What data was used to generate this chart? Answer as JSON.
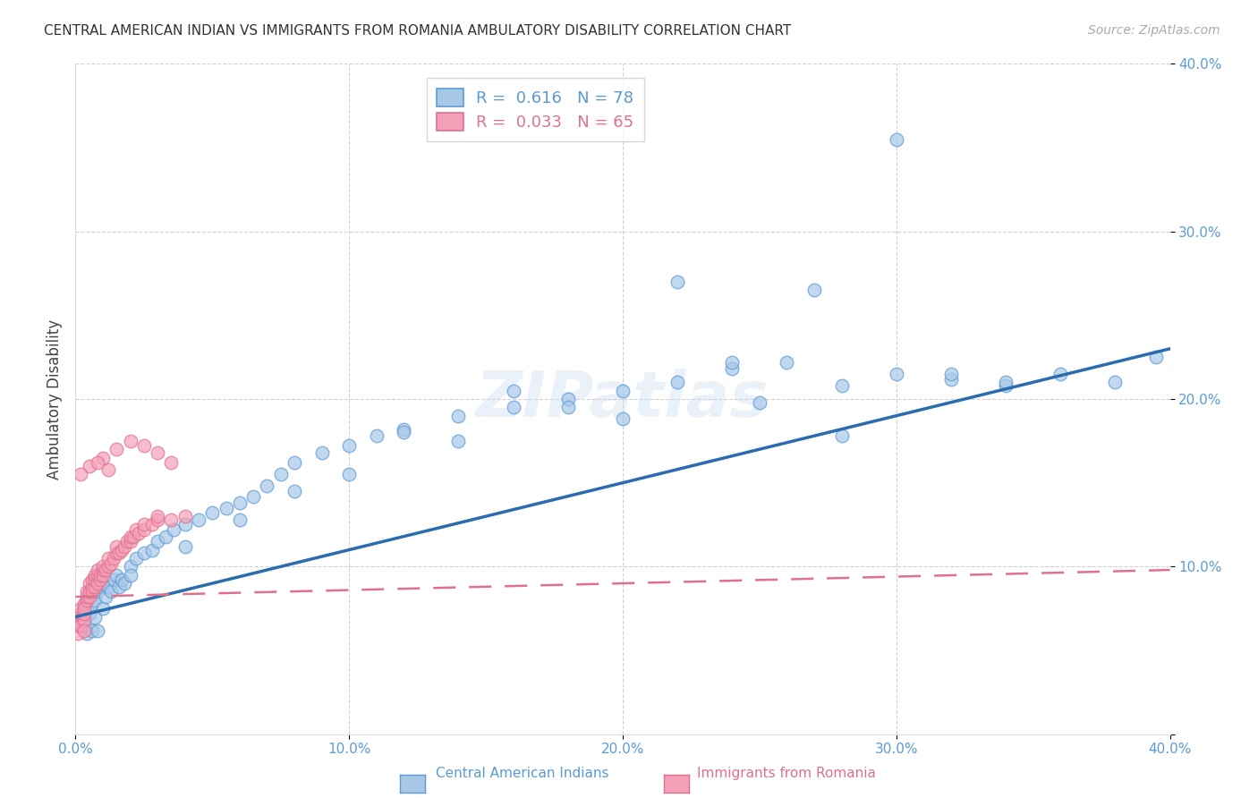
{
  "title": "CENTRAL AMERICAN INDIAN VS IMMIGRANTS FROM ROMANIA AMBULATORY DISABILITY CORRELATION CHART",
  "source": "Source: ZipAtlas.com",
  "ylabel": "Ambulatory Disability",
  "xlim": [
    0.0,
    0.4
  ],
  "ylim": [
    0.0,
    0.4
  ],
  "xticks": [
    0.0,
    0.1,
    0.2,
    0.3,
    0.4
  ],
  "yticks": [
    0.0,
    0.1,
    0.2,
    0.3,
    0.4
  ],
  "xticklabels": [
    "0.0%",
    "10.0%",
    "20.0%",
    "30.0%",
    "40.0%"
  ],
  "yticklabels": [
    "",
    "10.0%",
    "20.0%",
    "30.0%",
    "40.0%"
  ],
  "watermark": "ZIPatlas",
  "R_blue": 0.616,
  "N_blue": 78,
  "R_pink": 0.033,
  "N_pink": 65,
  "blue_face": "#a8c8e8",
  "blue_edge": "#5b9bd5",
  "pink_face": "#f4a0b8",
  "pink_edge": "#e07090",
  "line_blue": "#2b6cb0",
  "line_pink": "#e07090",
  "tick_color": "#5b9bd5",
  "legend_text_blue": "#5b9bd5",
  "legend_text_pink": "#e07090",
  "background_color": "#ffffff",
  "grid_color": "#cccccc",
  "title_fontsize": 11,
  "source_fontsize": 10,
  "watermark_fontsize": 52,
  "watermark_color": "#c8d8f0",
  "watermark_alpha": 0.35,
  "blue_x": [
    0.001,
    0.002,
    0.002,
    0.003,
    0.003,
    0.004,
    0.004,
    0.005,
    0.005,
    0.006,
    0.006,
    0.007,
    0.007,
    0.008,
    0.008,
    0.009,
    0.01,
    0.01,
    0.011,
    0.012,
    0.013,
    0.014,
    0.015,
    0.016,
    0.017,
    0.018,
    0.02,
    0.022,
    0.025,
    0.028,
    0.03,
    0.033,
    0.036,
    0.04,
    0.045,
    0.05,
    0.055,
    0.06,
    0.065,
    0.07,
    0.075,
    0.08,
    0.09,
    0.1,
    0.11,
    0.12,
    0.14,
    0.16,
    0.18,
    0.2,
    0.22,
    0.24,
    0.26,
    0.28,
    0.3,
    0.32,
    0.34,
    0.36,
    0.38,
    0.395,
    0.16,
    0.18,
    0.22,
    0.25,
    0.27,
    0.3,
    0.32,
    0.34,
    0.2,
    0.28,
    0.14,
    0.24,
    0.12,
    0.1,
    0.08,
    0.06,
    0.04,
    0.02
  ],
  "blue_y": [
    0.07,
    0.072,
    0.068,
    0.075,
    0.065,
    0.08,
    0.06,
    0.085,
    0.072,
    0.078,
    0.062,
    0.08,
    0.07,
    0.085,
    0.062,
    0.088,
    0.09,
    0.075,
    0.082,
    0.088,
    0.085,
    0.092,
    0.095,
    0.088,
    0.092,
    0.09,
    0.1,
    0.105,
    0.108,
    0.11,
    0.115,
    0.118,
    0.122,
    0.125,
    0.128,
    0.132,
    0.135,
    0.138,
    0.142,
    0.148,
    0.155,
    0.162,
    0.168,
    0.172,
    0.178,
    0.182,
    0.19,
    0.195,
    0.2,
    0.205,
    0.21,
    0.218,
    0.222,
    0.208,
    0.215,
    0.212,
    0.208,
    0.215,
    0.21,
    0.225,
    0.205,
    0.195,
    0.27,
    0.198,
    0.265,
    0.355,
    0.215,
    0.21,
    0.188,
    0.178,
    0.175,
    0.222,
    0.18,
    0.155,
    0.145,
    0.128,
    0.112,
    0.095
  ],
  "pink_x": [
    0.001,
    0.001,
    0.001,
    0.002,
    0.002,
    0.002,
    0.002,
    0.003,
    0.003,
    0.003,
    0.003,
    0.004,
    0.004,
    0.004,
    0.005,
    0.005,
    0.005,
    0.006,
    0.006,
    0.006,
    0.007,
    0.007,
    0.007,
    0.008,
    0.008,
    0.008,
    0.009,
    0.009,
    0.01,
    0.01,
    0.01,
    0.011,
    0.012,
    0.012,
    0.013,
    0.014,
    0.015,
    0.015,
    0.016,
    0.017,
    0.018,
    0.019,
    0.02,
    0.02,
    0.021,
    0.022,
    0.023,
    0.025,
    0.025,
    0.028,
    0.03,
    0.03,
    0.035,
    0.04,
    0.01,
    0.015,
    0.02,
    0.025,
    0.03,
    0.035,
    0.005,
    0.008,
    0.012,
    0.002,
    0.003
  ],
  "pink_y": [
    0.06,
    0.065,
    0.068,
    0.07,
    0.072,
    0.075,
    0.065,
    0.068,
    0.072,
    0.078,
    0.075,
    0.08,
    0.082,
    0.085,
    0.082,
    0.085,
    0.09,
    0.085,
    0.088,
    0.092,
    0.088,
    0.092,
    0.095,
    0.09,
    0.095,
    0.098,
    0.092,
    0.095,
    0.095,
    0.098,
    0.1,
    0.098,
    0.1,
    0.105,
    0.102,
    0.105,
    0.108,
    0.112,
    0.108,
    0.11,
    0.112,
    0.115,
    0.115,
    0.118,
    0.118,
    0.122,
    0.12,
    0.122,
    0.125,
    0.125,
    0.128,
    0.13,
    0.128,
    0.13,
    0.165,
    0.17,
    0.175,
    0.172,
    0.168,
    0.162,
    0.16,
    0.162,
    0.158,
    0.155,
    0.062
  ]
}
